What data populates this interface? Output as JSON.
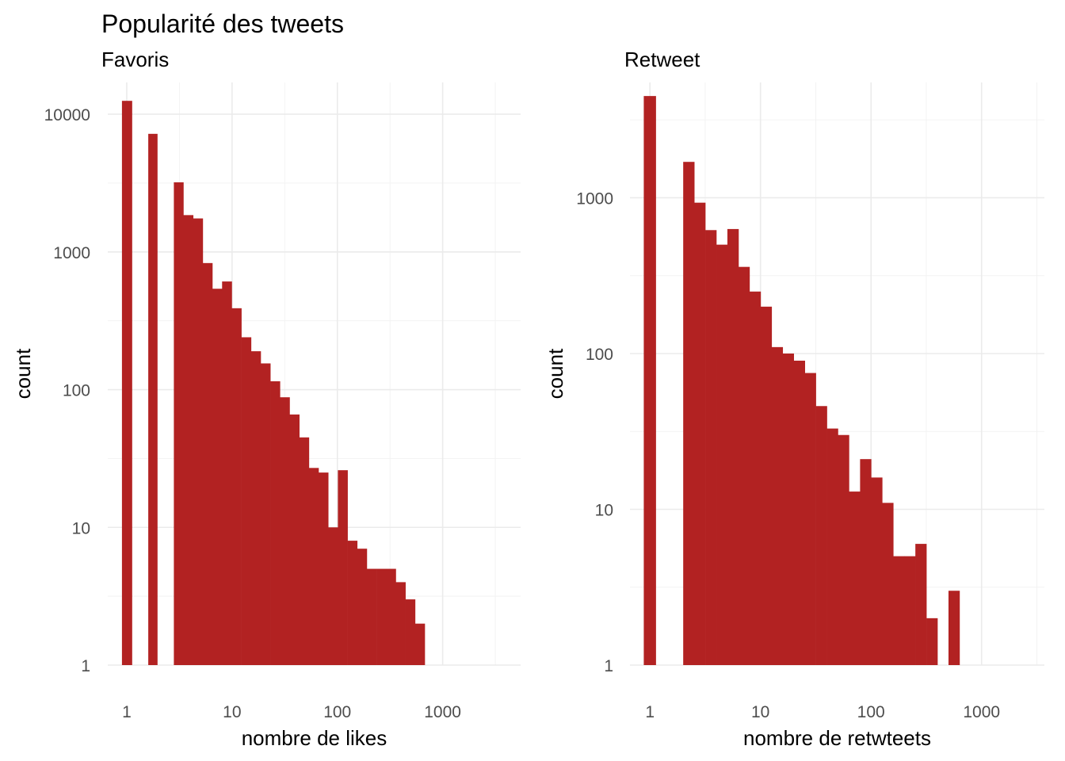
{
  "title": "Popularité des tweets",
  "chart_data": [
    {
      "type": "bar",
      "subtitle": "Favoris",
      "xlabel": "nombre de likes",
      "ylabel": "count",
      "x_scale": "log10",
      "y_scale": "log10",
      "grid": true,
      "color": "#B22222",
      "xlim": [
        0.66,
        5500
      ],
      "ylim": [
        1,
        17000
      ],
      "x_ticks": [
        1,
        10,
        100,
        1000
      ],
      "x_tick_labels": [
        "1",
        "10",
        "100",
        "1000"
      ],
      "y_ticks": [
        1,
        10,
        100,
        1000,
        10000
      ],
      "y_tick_labels": [
        "1",
        "10",
        "100",
        "1000",
        "10000"
      ],
      "bins": [
        {
          "x_min": 0.9,
          "x_max": 1.12,
          "count": 12500
        },
        {
          "x_min": 1.6,
          "x_max": 1.95,
          "count": 7200
        },
        {
          "x_min": 2.8,
          "x_max": 3.45,
          "count": 3200
        },
        {
          "x_min": 3.45,
          "x_max": 4.27,
          "count": 1850
        },
        {
          "x_min": 4.27,
          "x_max": 5.27,
          "count": 1750
        },
        {
          "x_min": 5.27,
          "x_max": 6.5,
          "count": 830
        },
        {
          "x_min": 6.5,
          "x_max": 8.04,
          "count": 540
        },
        {
          "x_min": 8.04,
          "x_max": 9.93,
          "count": 610
        },
        {
          "x_min": 9.93,
          "x_max": 12.26,
          "count": 390
        },
        {
          "x_min": 12.26,
          "x_max": 15.15,
          "count": 240
        },
        {
          "x_min": 15.15,
          "x_max": 18.71,
          "count": 190
        },
        {
          "x_min": 18.71,
          "x_max": 23.1,
          "count": 155
        },
        {
          "x_min": 23.1,
          "x_max": 28.5,
          "count": 115
        },
        {
          "x_min": 28.5,
          "x_max": 35.2,
          "count": 88
        },
        {
          "x_min": 35.2,
          "x_max": 43.5,
          "count": 66
        },
        {
          "x_min": 43.5,
          "x_max": 53.7,
          "count": 45
        },
        {
          "x_min": 53.7,
          "x_max": 66.3,
          "count": 27
        },
        {
          "x_min": 66.3,
          "x_max": 81.9,
          "count": 25
        },
        {
          "x_min": 81.9,
          "x_max": 101.2,
          "count": 10
        },
        {
          "x_min": 101.2,
          "x_max": 125,
          "count": 26
        },
        {
          "x_min": 125,
          "x_max": 154.3,
          "count": 8
        },
        {
          "x_min": 154.3,
          "x_max": 190.5,
          "count": 7
        },
        {
          "x_min": 190.5,
          "x_max": 235.3,
          "count": 5
        },
        {
          "x_min": 235.3,
          "x_max": 290.6,
          "count": 5
        },
        {
          "x_min": 290.6,
          "x_max": 358.9,
          "count": 5
        },
        {
          "x_min": 358.9,
          "x_max": 443.2,
          "count": 4
        },
        {
          "x_min": 443.2,
          "x_max": 547.4,
          "count": 3
        },
        {
          "x_min": 547.4,
          "x_max": 676,
          "count": 2
        }
      ]
    },
    {
      "type": "bar",
      "subtitle": "Retweet",
      "xlabel": "nombre de retwteets",
      "ylabel": "count",
      "x_scale": "log10",
      "y_scale": "log10",
      "grid": true,
      "color": "#B22222",
      "xlim": [
        0.66,
        3700
      ],
      "ylim": [
        1,
        5500
      ],
      "x_ticks": [
        1,
        10,
        100,
        1000
      ],
      "x_tick_labels": [
        "1",
        "10",
        "100",
        "1000"
      ],
      "y_ticks": [
        1,
        10,
        100,
        1000
      ],
      "y_tick_labels": [
        "1",
        "10",
        "100",
        "1000"
      ],
      "bins": [
        {
          "x_min": 0.88,
          "x_max": 1.13,
          "count": 4500
        },
        {
          "x_min": 2.0,
          "x_max": 2.52,
          "count": 1700
        },
        {
          "x_min": 2.52,
          "x_max": 3.17,
          "count": 930
        },
        {
          "x_min": 3.17,
          "x_max": 3.99,
          "count": 620
        },
        {
          "x_min": 3.99,
          "x_max": 5.02,
          "count": 500
        },
        {
          "x_min": 5.02,
          "x_max": 6.33,
          "count": 630
        },
        {
          "x_min": 6.33,
          "x_max": 7.96,
          "count": 360
        },
        {
          "x_min": 7.96,
          "x_max": 10.03,
          "count": 250
        },
        {
          "x_min": 10.03,
          "x_max": 12.62,
          "count": 200
        },
        {
          "x_min": 12.62,
          "x_max": 15.89,
          "count": 110
        },
        {
          "x_min": 15.89,
          "x_max": 20.0,
          "count": 100
        },
        {
          "x_min": 20.0,
          "x_max": 25.2,
          "count": 90
        },
        {
          "x_min": 25.2,
          "x_max": 31.7,
          "count": 75
        },
        {
          "x_min": 31.7,
          "x_max": 39.9,
          "count": 46
        },
        {
          "x_min": 39.9,
          "x_max": 50.2,
          "count": 33
        },
        {
          "x_min": 50.2,
          "x_max": 63.2,
          "count": 30
        },
        {
          "x_min": 63.2,
          "x_max": 79.6,
          "count": 13
        },
        {
          "x_min": 79.6,
          "x_max": 100.2,
          "count": 21
        },
        {
          "x_min": 100.2,
          "x_max": 126.2,
          "count": 16
        },
        {
          "x_min": 126.2,
          "x_max": 158.9,
          "count": 11
        },
        {
          "x_min": 158.9,
          "x_max": 200,
          "count": 5
        },
        {
          "x_min": 200,
          "x_max": 251.8,
          "count": 5
        },
        {
          "x_min": 251.8,
          "x_max": 317,
          "count": 6
        },
        {
          "x_min": 317,
          "x_max": 399,
          "count": 2
        },
        {
          "x_min": 502,
          "x_max": 632,
          "count": 3
        }
      ]
    }
  ]
}
